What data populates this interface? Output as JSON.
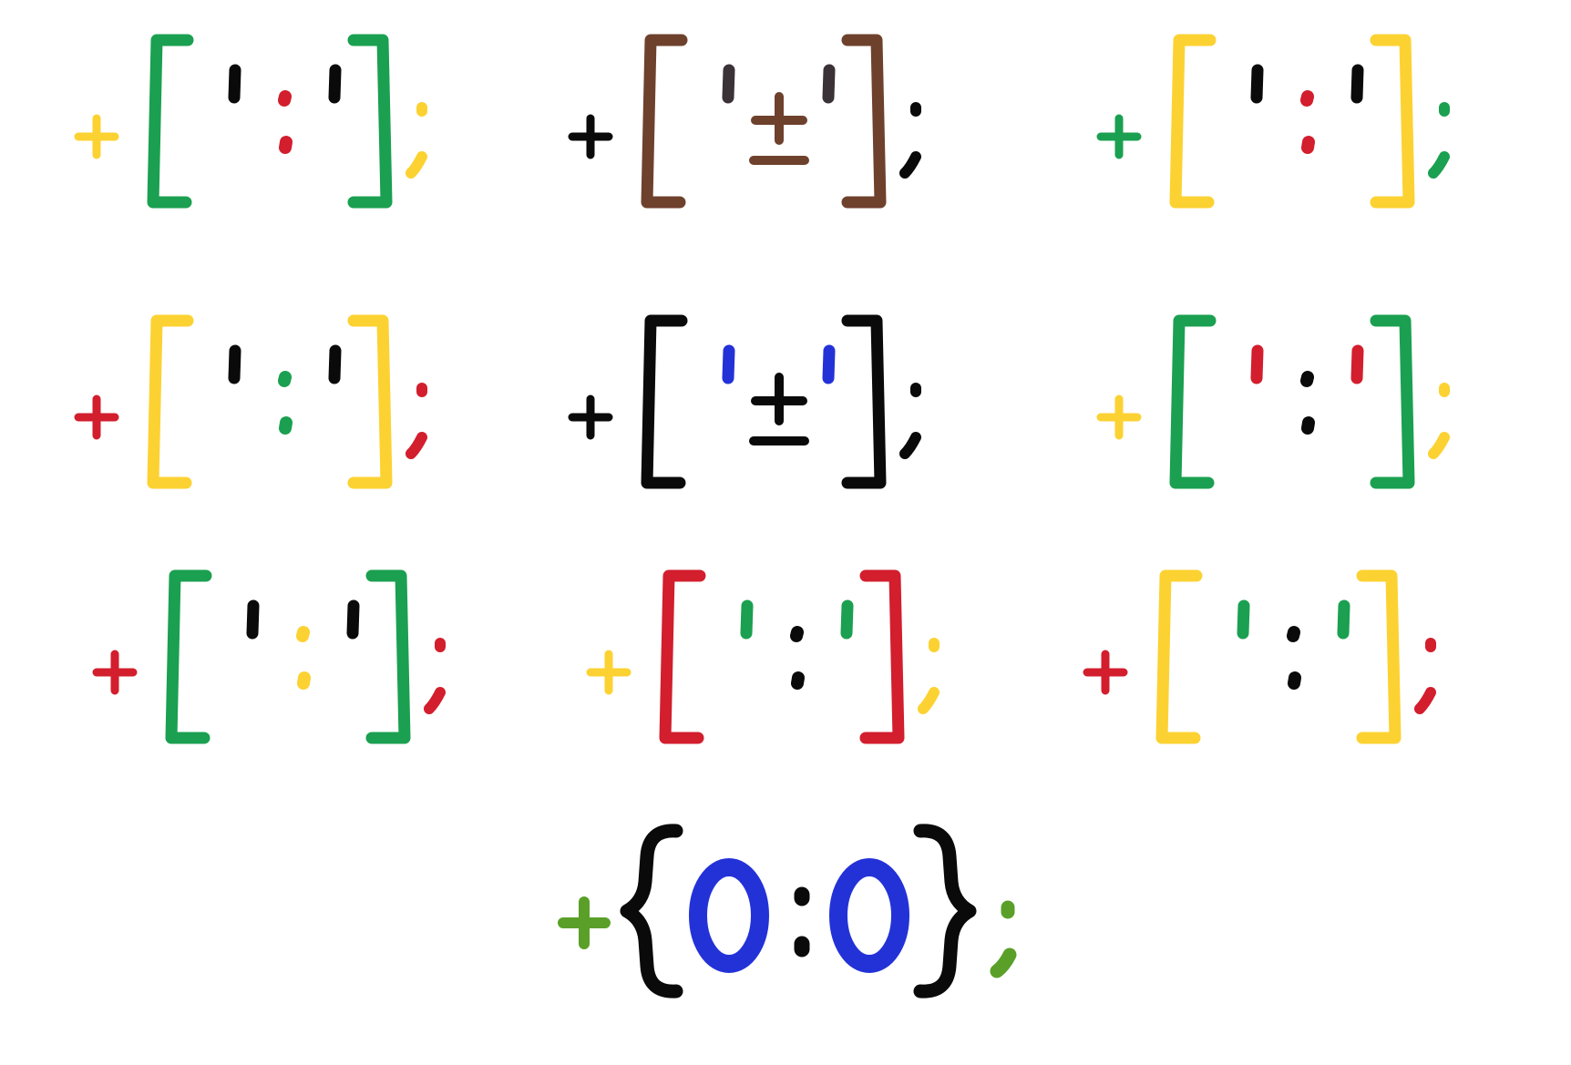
{
  "background": "#ffffff",
  "palette": {
    "green": "#1aa050",
    "yellow": "#fcd232",
    "red": "#d21e2d",
    "black": "#0a0a0a",
    "brown": "#6e412d",
    "darkgray": "#3a3236",
    "blue": "#2332d7",
    "olive": "#5aa028"
  },
  "emoticons": [
    {
      "text": "+[':']; ",
      "plus": "yellow",
      "bracket": "green",
      "eyes": "black",
      "nose": "red",
      "nose_kind": "colon",
      "semi": "yellow"
    },
    {
      "text": "+['±']; ",
      "plus": "black",
      "bracket": "brown",
      "eyes": "darkgray",
      "nose": "brown",
      "nose_kind": "plusminus",
      "semi": "black"
    },
    {
      "text": "+[':']; ",
      "plus": "green",
      "bracket": "yellow",
      "eyes": "black",
      "nose": "red",
      "nose_kind": "colon",
      "semi": "green"
    },
    {
      "text": "+[':']; ",
      "plus": "red",
      "bracket": "yellow",
      "eyes": "black",
      "nose": "green",
      "nose_kind": "colon",
      "semi": "red"
    },
    {
      "text": "+['±']; ",
      "plus": "black",
      "bracket": "black",
      "eyes": "blue",
      "nose": "black",
      "nose_kind": "plusminus",
      "semi": "black"
    },
    {
      "text": "+[':']; ",
      "plus": "yellow",
      "bracket": "green",
      "eyes": "red",
      "nose": "black",
      "nose_kind": "colon",
      "semi": "yellow"
    },
    {
      "text": "+[':']; ",
      "plus": "red",
      "bracket": "green",
      "eyes": "black",
      "nose": "yellow",
      "nose_kind": "colon",
      "semi": "red"
    },
    {
      "text": "+[':']; ",
      "plus": "yellow",
      "bracket": "red",
      "eyes": "green",
      "nose": "black",
      "nose_kind": "colon",
      "semi": "yellow"
    },
    {
      "text": "+[':']; ",
      "plus": "red",
      "bracket": "yellow",
      "eyes": "green",
      "nose": "black",
      "nose_kind": "colon",
      "semi": "red"
    }
  ],
  "final": {
    "text": "+{O:O};",
    "plus": "olive",
    "brace": "black",
    "eyes": "blue",
    "nose": "black",
    "semi": "olive"
  }
}
